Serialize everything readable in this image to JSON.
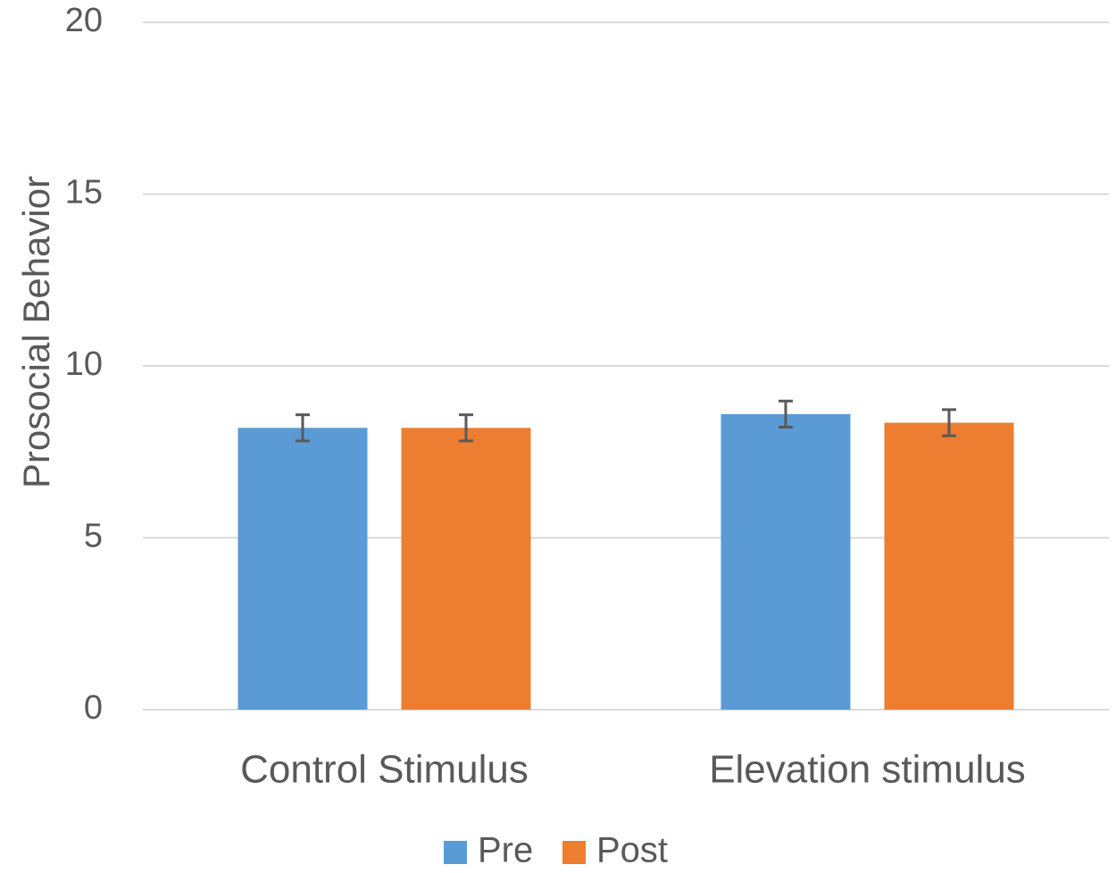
{
  "chart_data": {
    "type": "bar",
    "ylabel": "Prosocial Behavior",
    "ylim": [
      0,
      20
    ],
    "yticks": [
      0,
      5,
      10,
      15,
      20
    ],
    "grid": true,
    "legend_position": "bottom",
    "categories": [
      "Control Stimulus",
      "Elevation stimulus"
    ],
    "series": [
      {
        "name": "Pre",
        "color": "#5B9BD5",
        "values": [
          8.2,
          8.6
        ],
        "errors": [
          0.38,
          0.38
        ]
      },
      {
        "name": "Post",
        "color": "#ED7D31",
        "values": [
          8.2,
          8.35
        ],
        "errors": [
          0.38,
          0.38
        ]
      }
    ]
  }
}
